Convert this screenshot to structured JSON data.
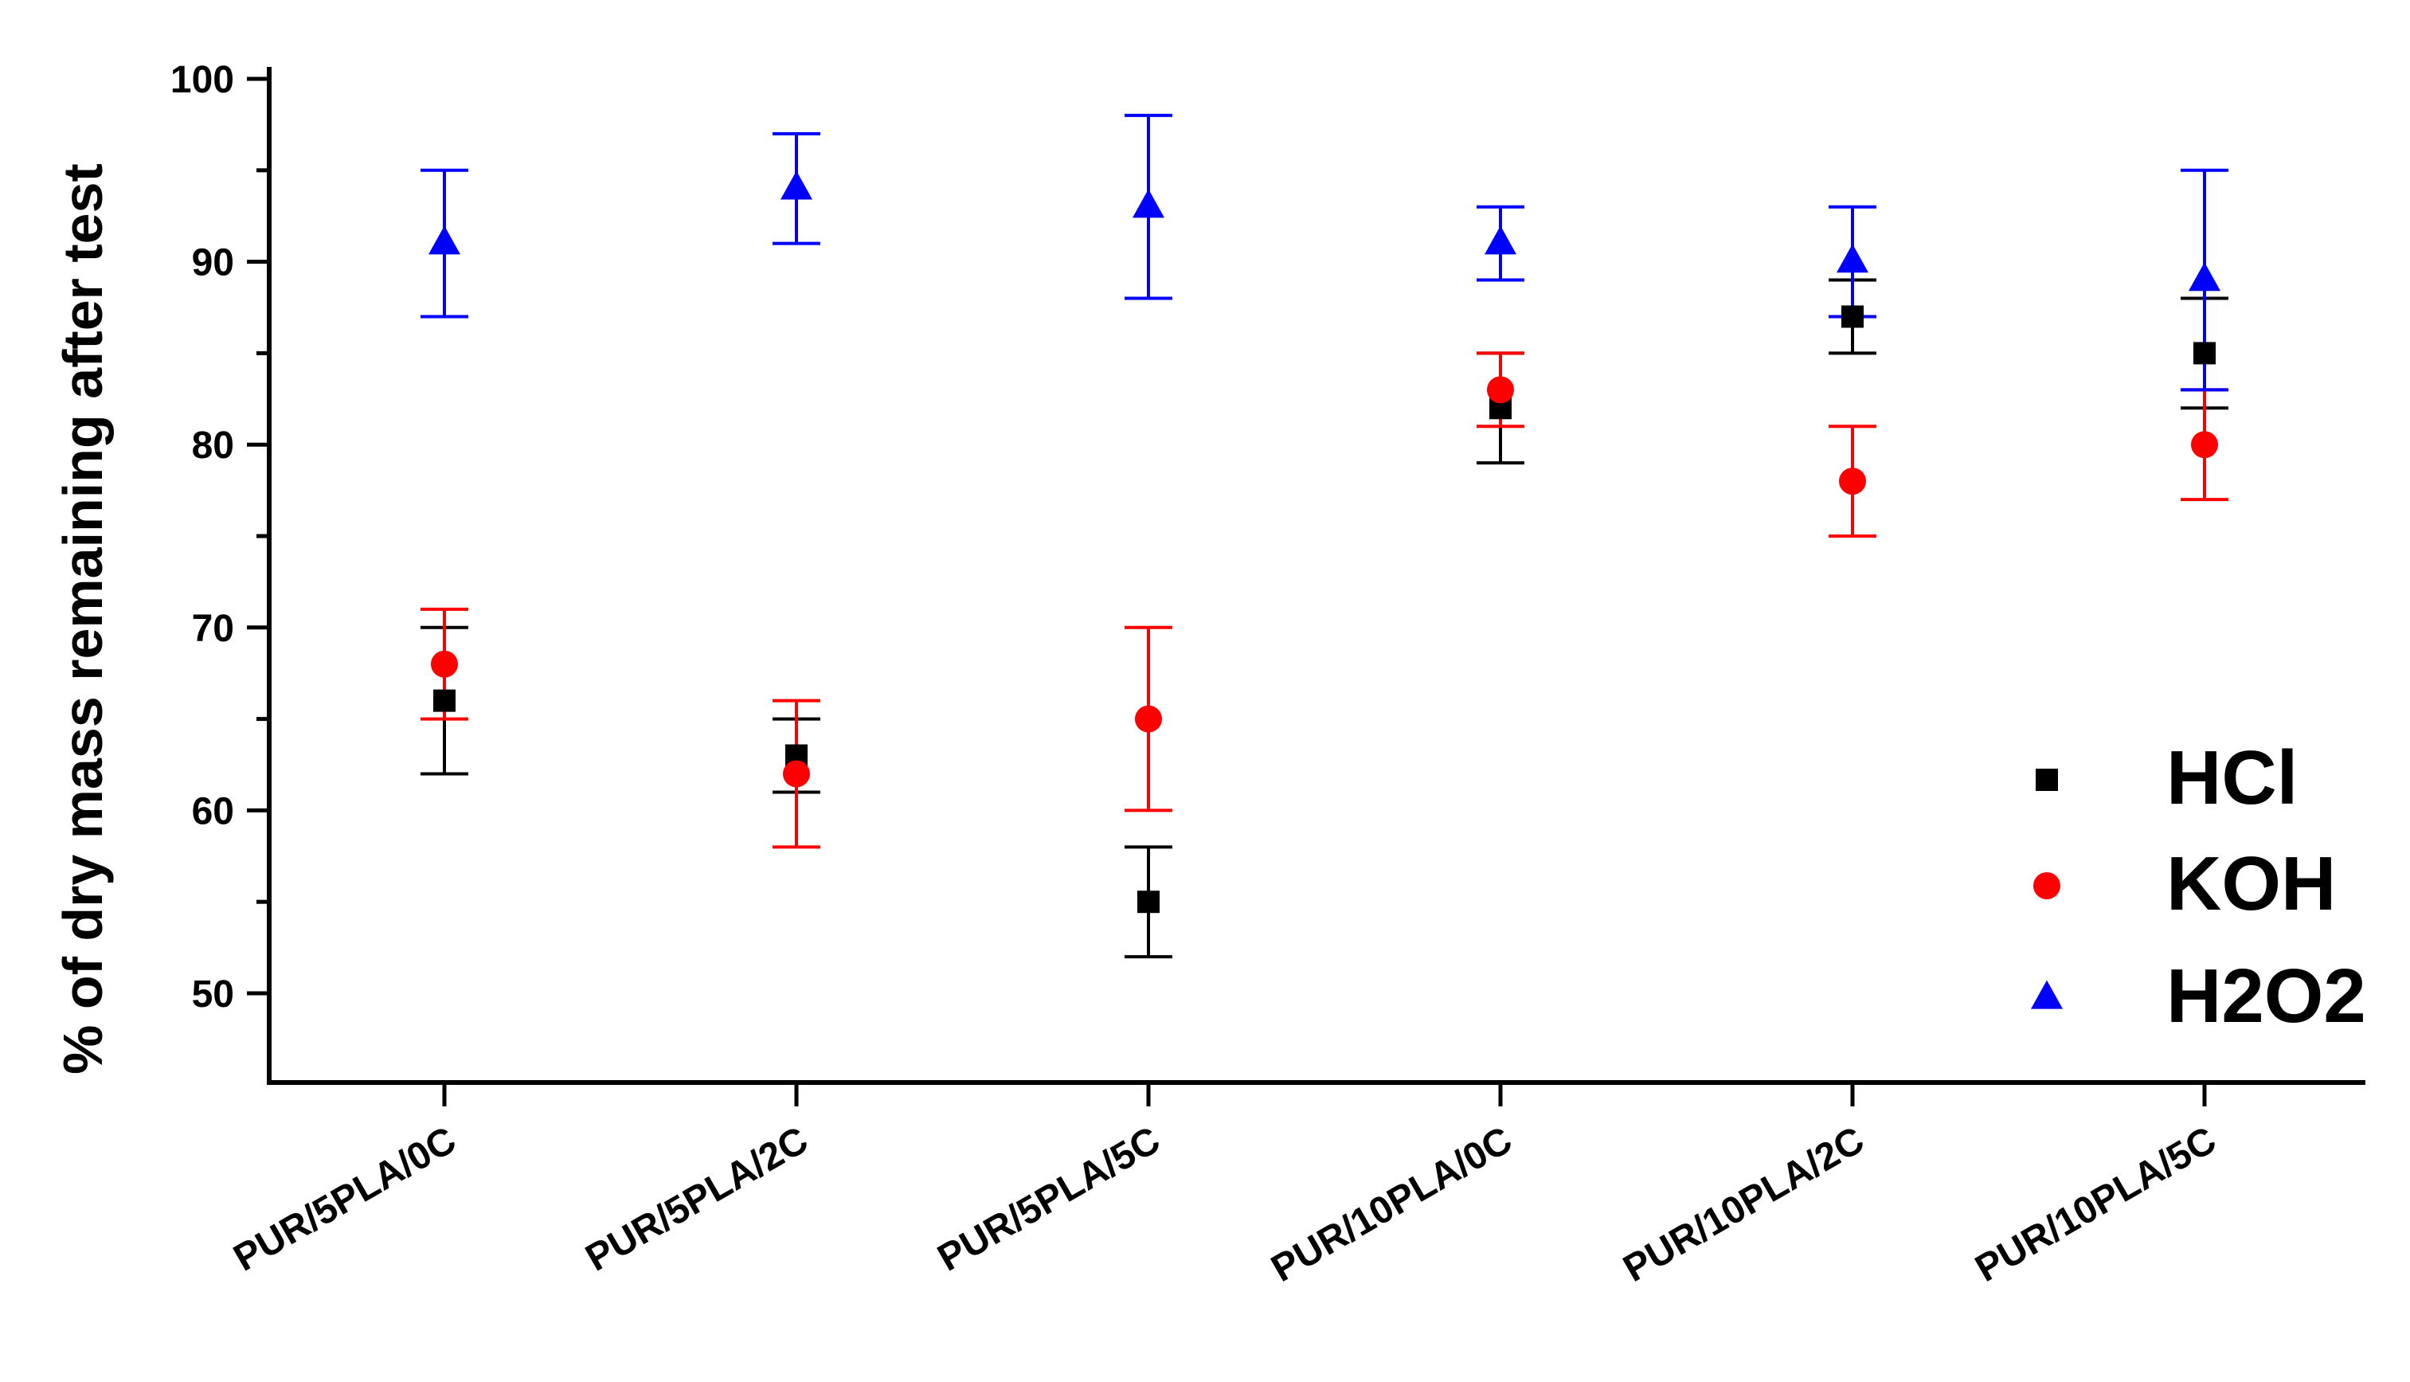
{
  "chart_data": {
    "type": "scatter",
    "title": "",
    "xlabel": "",
    "ylabel": "% of dry mass remaining after test",
    "categories": [
      "PUR/5PLA/0C",
      "PUR/5PLA/2C",
      "PUR/5PLA/5C",
      "PUR/10PLA/0C",
      "PUR/10PLA/2C",
      "PUR/10PLA/5C"
    ],
    "ylim": [
      45,
      100
    ],
    "yticks": [
      50,
      60,
      70,
      80,
      90,
      100
    ],
    "grid": false,
    "legend_position": "bottom-right",
    "series": [
      {
        "name": "HCl",
        "marker": "square",
        "color": "#000000",
        "values": [
          66,
          63,
          55,
          82,
          87,
          85
        ],
        "err_low": [
          62,
          61,
          52,
          79,
          85,
          82
        ],
        "err_high": [
          70,
          65,
          58,
          85,
          89,
          88
        ]
      },
      {
        "name": "KOH",
        "marker": "circle",
        "color": "#ff0000",
        "values": [
          68,
          62,
          65,
          83,
          78,
          80
        ],
        "err_low": [
          65,
          58,
          60,
          81,
          75,
          77
        ],
        "err_high": [
          71,
          66,
          70,
          85,
          81,
          83
        ]
      },
      {
        "name": "H2O2",
        "marker": "triangle",
        "color": "#0000ff",
        "values": [
          91,
          94,
          93,
          91,
          90,
          89
        ],
        "err_low": [
          87,
          91,
          88,
          89,
          87,
          83
        ],
        "err_high": [
          95,
          97,
          98,
          93,
          93,
          95
        ]
      }
    ]
  }
}
